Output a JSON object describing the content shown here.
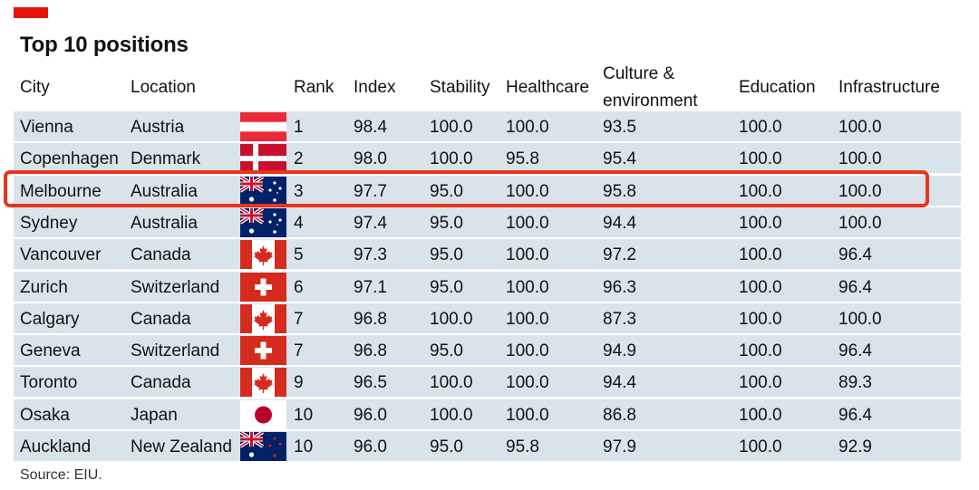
{
  "title": "Top 10 positions",
  "source": "Source: EIU.",
  "colors": {
    "accent": "#e3120b",
    "row_bg": "#d9e4ea",
    "highlight": "#e8351d"
  },
  "highlighted_row": 2,
  "headers": {
    "city": "City",
    "location": "Location",
    "rank": "Rank",
    "index": "Index",
    "stability": "Stability",
    "healthcare": "Healthcare",
    "culture_l1": "Culture &",
    "culture_l2": "environment",
    "education": "Education",
    "infrastructure": "Infrastructure"
  },
  "chart_data": {
    "type": "table",
    "title": "Top 10 positions",
    "columns": [
      "City",
      "Location",
      "Rank",
      "Index",
      "Stability",
      "Healthcare",
      "Culture & environment",
      "Education",
      "Infrastructure"
    ],
    "rows": [
      {
        "city": "Vienna",
        "location": "Austria",
        "flag": "austria",
        "rank": "1",
        "index": "98.4",
        "stability": "100.0",
        "healthcare": "100.0",
        "culture": "93.5",
        "education": "100.0",
        "infrastructure": "100.0"
      },
      {
        "city": "Copenhagen",
        "location": "Denmark",
        "flag": "denmark",
        "rank": "2",
        "index": "98.0",
        "stability": "100.0",
        "healthcare": "95.8",
        "culture": "95.4",
        "education": "100.0",
        "infrastructure": "100.0"
      },
      {
        "city": "Melbourne",
        "location": "Australia",
        "flag": "australia",
        "rank": "3",
        "index": "97.7",
        "stability": "95.0",
        "healthcare": "100.0",
        "culture": "95.8",
        "education": "100.0",
        "infrastructure": "100.0"
      },
      {
        "city": "Sydney",
        "location": "Australia",
        "flag": "australia",
        "rank": "4",
        "index": "97.4",
        "stability": "95.0",
        "healthcare": "100.0",
        "culture": "94.4",
        "education": "100.0",
        "infrastructure": "100.0"
      },
      {
        "city": "Vancouver",
        "location": "Canada",
        "flag": "canada",
        "rank": "5",
        "index": "97.3",
        "stability": "95.0",
        "healthcare": "100.0",
        "culture": "97.2",
        "education": "100.0",
        "infrastructure": "96.4"
      },
      {
        "city": "Zurich",
        "location": "Switzerland",
        "flag": "switzerland",
        "rank": "6",
        "index": "97.1",
        "stability": "95.0",
        "healthcare": "100.0",
        "culture": "96.3",
        "education": "100.0",
        "infrastructure": "96.4"
      },
      {
        "city": "Calgary",
        "location": "Canada",
        "flag": "canada",
        "rank": "7",
        "index": "96.8",
        "stability": "100.0",
        "healthcare": "100.0",
        "culture": "87.3",
        "education": "100.0",
        "infrastructure": "100.0"
      },
      {
        "city": "Geneva",
        "location": "Switzerland",
        "flag": "switzerland",
        "rank": "7",
        "index": "96.8",
        "stability": "95.0",
        "healthcare": "100.0",
        "culture": "94.9",
        "education": "100.0",
        "infrastructure": "96.4"
      },
      {
        "city": "Toronto",
        "location": "Canada",
        "flag": "canada",
        "rank": "9",
        "index": "96.5",
        "stability": "100.0",
        "healthcare": "100.0",
        "culture": "94.4",
        "education": "100.0",
        "infrastructure": "89.3"
      },
      {
        "city": "Osaka",
        "location": "Japan",
        "flag": "japan",
        "rank": "10",
        "index": "96.0",
        "stability": "100.0",
        "healthcare": "100.0",
        "culture": "86.8",
        "education": "100.0",
        "infrastructure": "96.4"
      },
      {
        "city": "Auckland",
        "location": "New Zealand",
        "flag": "new-zealand",
        "rank": "10",
        "index": "96.0",
        "stability": "95.0",
        "healthcare": "95.8",
        "culture": "97.9",
        "education": "100.0",
        "infrastructure": "92.9"
      }
    ]
  }
}
